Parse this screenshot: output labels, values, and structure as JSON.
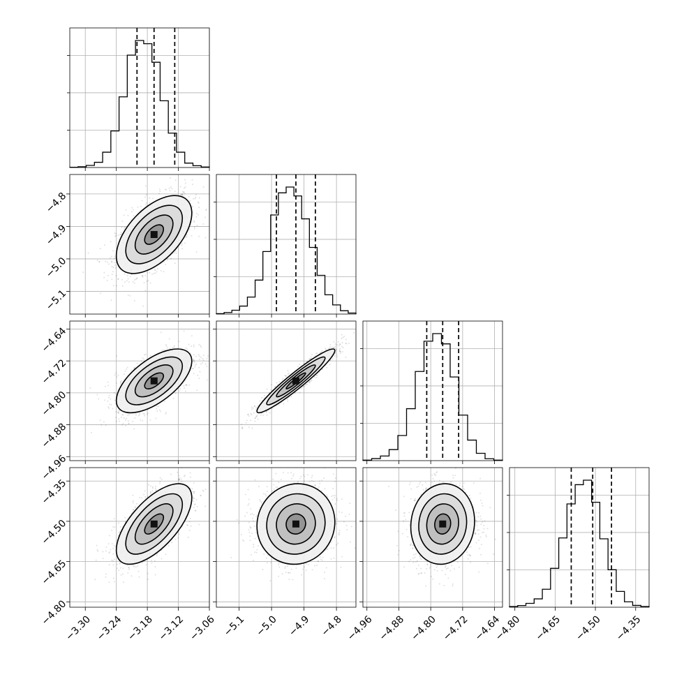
{
  "chart_data": {
    "type": "corner",
    "parameters": [
      {
        "range": [
          -3.33,
          -3.06
        ],
        "tick_labels": [
          "−3.30",
          "−3.24",
          "−3.18",
          "−3.12",
          "−3.06"
        ],
        "tick_values": [
          -3.3,
          -3.24,
          -3.18,
          -3.12,
          -3.06
        ],
        "quantiles": [
          -3.2,
          -3.167,
          -3.127
        ],
        "histogram": [
          2,
          6,
          16,
          40,
          118,
          282,
          545,
          867,
          980,
          955,
          812,
          515,
          265,
          118,
          34,
          14,
          4
        ]
      },
      {
        "range": [
          -5.17,
          -4.74
        ],
        "tick_labels": [
          "−5.1",
          "−5.0",
          "−4.9",
          "−4.8"
        ],
        "tick_values": [
          -5.1,
          -5.0,
          -4.9,
          -4.8
        ],
        "quantiles": [
          -4.985,
          -4.925,
          -4.865
        ],
        "histogram": [
          3,
          12,
          30,
          62,
          132,
          264,
          486,
          770,
          942,
          987,
          918,
          740,
          518,
          301,
          150,
          71,
          26,
          8
        ]
      },
      {
        "range": [
          -4.97,
          -4.62
        ],
        "tick_labels": [
          "−4.96",
          "−4.88",
          "−4.80",
          "−4.72",
          "−4.64"
        ],
        "tick_values": [
          -4.96,
          -4.88,
          -4.8,
          -4.72,
          -4.64
        ],
        "quantiles": [
          -4.81,
          -4.77,
          -4.73
        ],
        "histogram": [
          4,
          16,
          36,
          86,
          196,
          405,
          695,
          931,
          990,
          910,
          652,
          355,
          160,
          57,
          15,
          4
        ]
      },
      {
        "range": [
          -4.82,
          -4.3
        ],
        "tick_labels": [
          "−4.80",
          "−4.65",
          "−4.50",
          "−4.35"
        ],
        "tick_values": [
          -4.8,
          -4.65,
          -4.5,
          -4.35
        ],
        "quantiles": [
          -4.59,
          -4.51,
          -4.44
        ],
        "histogram": [
          5,
          13,
          30,
          65,
          140,
          303,
          540,
          805,
          955,
          990,
          818,
          533,
          292,
          123,
          42,
          14,
          5
        ]
      }
    ],
    "pairs": [
      {
        "row": 1,
        "col": 0,
        "correlation": 0.55
      },
      {
        "row": 2,
        "col": 0,
        "correlation": 0.62
      },
      {
        "row": 2,
        "col": 1,
        "correlation": 0.95
      },
      {
        "row": 3,
        "col": 0,
        "correlation": 0.65
      },
      {
        "row": 3,
        "col": 1,
        "correlation": 0.05
      },
      {
        "row": 3,
        "col": 2,
        "correlation": 0.07
      }
    ],
    "contour_levels_sigma": [
      0.5,
      1.0,
      1.5,
      2.0
    ],
    "grid": true,
    "point_color": "#000000",
    "title": "",
    "legend": "none"
  }
}
